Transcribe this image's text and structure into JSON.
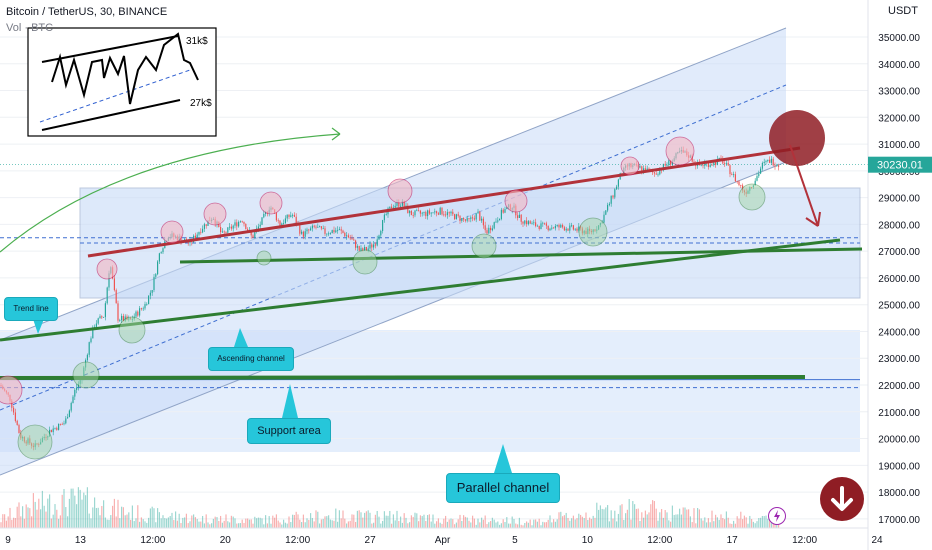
{
  "header": {
    "symbol": "Bitcoin / TetherUS, 30, BINANCE",
    "volume_label": "Vol · BTC",
    "currency": "USDT"
  },
  "price": {
    "current_label": "30230.01",
    "current_value": 30230
  },
  "inset": {
    "top_label": "31k$",
    "bottom_label": "27k$"
  },
  "annotations": {
    "trend_line": "Trend line",
    "ascending_channel": "Ascending channel",
    "support_area": "Support area",
    "parallel_channel": "Parallel channel"
  },
  "colors": {
    "bull": "#26a69a",
    "bear": "#ef5350",
    "channel_fill": "#dbe8fb",
    "resistance": "#b2323a",
    "support": "#2e7d32",
    "callout": "#26c6da",
    "down_button": "#8f1d24"
  },
  "icons": {
    "down_button": "arrow-down-icon",
    "flash": "lightning-icon"
  },
  "chart_data": {
    "type": "candlestick",
    "title": "Bitcoin / TetherUS, 30, BINANCE",
    "xlabel": "",
    "ylabel": "USDT",
    "ylim": [
      16600,
      36000
    ],
    "x_ticks": [
      "9",
      "13",
      "12:00",
      "20",
      "12:00",
      "27",
      "Apr",
      "5",
      "10",
      "12:00",
      "17",
      "12:00",
      "24"
    ],
    "y_ticks": [
      17000,
      18000,
      19000,
      20000,
      21000,
      22000,
      23000,
      24000,
      25000,
      26000,
      27000,
      28000,
      29000,
      30000,
      31000,
      32000,
      33000,
      34000,
      35000
    ],
    "price_path": [
      [
        0,
        22000
      ],
      [
        10,
        21500
      ],
      [
        20,
        20100
      ],
      [
        35,
        19700
      ],
      [
        50,
        20300
      ],
      [
        65,
        20600
      ],
      [
        75,
        21800
      ],
      [
        82,
        22300
      ],
      [
        90,
        23700
      ],
      [
        95,
        24300
      ],
      [
        104,
        24600
      ],
      [
        110,
        26600
      ],
      [
        118,
        24500
      ],
      [
        130,
        24400
      ],
      [
        145,
        25000
      ],
      [
        152,
        25600
      ],
      [
        160,
        27000
      ],
      [
        168,
        27600
      ],
      [
        178,
        27500
      ],
      [
        190,
        27300
      ],
      [
        200,
        27800
      ],
      [
        213,
        28300
      ],
      [
        222,
        27600
      ],
      [
        232,
        27900
      ],
      [
        242,
        28200
      ],
      [
        252,
        27500
      ],
      [
        260,
        28000
      ],
      [
        270,
        28700
      ],
      [
        280,
        28000
      ],
      [
        292,
        28400
      ],
      [
        302,
        27600
      ],
      [
        315,
        27900
      ],
      [
        325,
        27700
      ],
      [
        338,
        27800
      ],
      [
        350,
        27500
      ],
      [
        360,
        27000
      ],
      [
        368,
        27100
      ],
      [
        375,
        27300
      ],
      [
        385,
        28300
      ],
      [
        392,
        28700
      ],
      [
        402,
        28800
      ],
      [
        410,
        28400
      ],
      [
        425,
        28400
      ],
      [
        440,
        28500
      ],
      [
        455,
        28300
      ],
      [
        468,
        28100
      ],
      [
        478,
        28400
      ],
      [
        486,
        27700
      ],
      [
        493,
        28000
      ],
      [
        503,
        28500
      ],
      [
        512,
        28700
      ],
      [
        520,
        28200
      ],
      [
        532,
        28000
      ],
      [
        548,
        27900
      ],
      [
        562,
        27900
      ],
      [
        578,
        27800
      ],
      [
        590,
        27700
      ],
      [
        600,
        28000
      ],
      [
        606,
        28500
      ],
      [
        613,
        29100
      ],
      [
        620,
        29800
      ],
      [
        628,
        30200
      ],
      [
        640,
        30100
      ],
      [
        655,
        29900
      ],
      [
        665,
        30200
      ],
      [
        673,
        30400
      ],
      [
        680,
        30700
      ],
      [
        688,
        30600
      ],
      [
        698,
        30200
      ],
      [
        712,
        30300
      ],
      [
        722,
        30400
      ],
      [
        730,
        30000
      ],
      [
        737,
        29600
      ],
      [
        745,
        29200
      ],
      [
        752,
        29500
      ],
      [
        757,
        29800
      ],
      [
        762,
        30200
      ],
      [
        770,
        30400
      ],
      [
        780,
        30200
      ]
    ],
    "volume_profile": [
      [
        0,
        0.3
      ],
      [
        30,
        0.8
      ],
      [
        80,
        1.0
      ],
      [
        130,
        0.55
      ],
      [
        200,
        0.35
      ],
      [
        260,
        0.3
      ],
      [
        330,
        0.45
      ],
      [
        400,
        0.4
      ],
      [
        470,
        0.3
      ],
      [
        540,
        0.25
      ],
      [
        600,
        0.6
      ],
      [
        640,
        0.7
      ],
      [
        700,
        0.45
      ],
      [
        780,
        0.3
      ]
    ],
    "horizontal_levels": [
      {
        "price": 22200,
        "style": "solid"
      },
      {
        "price": 21900,
        "style": "dashed"
      },
      {
        "price": 27500,
        "style": "dashed"
      }
    ],
    "projection": {
      "from": 30200,
      "to": 28000
    }
  }
}
